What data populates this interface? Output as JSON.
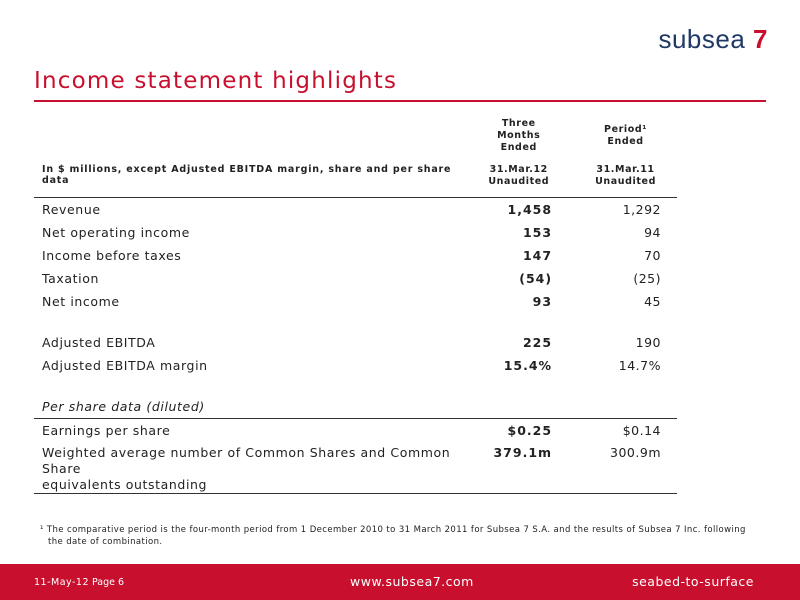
{
  "brand": {
    "logo_word": "subsea",
    "logo_num": "7"
  },
  "title": "Income statement highlights",
  "table": {
    "col_current": [
      "Three",
      "Months",
      "Ended"
    ],
    "col_prior": [
      "Period¹",
      "Ended"
    ],
    "caption": "In $ millions, except Adjusted EBITDA margin, share and per share data",
    "date_current": [
      "31.Mar.12",
      "Unaudited"
    ],
    "date_prior": [
      "31.Mar.11",
      "Unaudited"
    ],
    "rows": [
      {
        "label": "Revenue",
        "current": "1,458",
        "prior": "1,292"
      },
      {
        "label": "Net operating income",
        "current": "153",
        "prior": "94"
      },
      {
        "label": "Income before taxes",
        "current": "147",
        "prior": "70"
      },
      {
        "label": "Taxation",
        "current": "(54)",
        "prior": "(25)"
      },
      {
        "label": "Net income",
        "current": "93",
        "prior": "45"
      },
      {
        "label": "Adjusted EBITDA",
        "current": "225",
        "prior": "190"
      },
      {
        "label": "Adjusted EBITDA margin",
        "current": "15.4%",
        "prior": "14.7%"
      },
      {
        "label": "Per share data (diluted)",
        "current": "",
        "prior": ""
      },
      {
        "label": "Earnings per share",
        "current": "$0.25",
        "prior": "$0.14"
      },
      {
        "label": "Weighted average number of Common Shares and Common Share",
        "label2": "equivalents outstanding",
        "current": "379.1m",
        "prior": "300.9m"
      }
    ]
  },
  "footnote": {
    "line1": "¹ The comparative period is the four-month period from 1 December 2010 to 31 March 2011 for Subsea 7 S.A. and the results of Subsea 7 Inc. following",
    "line2": "the date of combination."
  },
  "footer": {
    "date": "11-May-12",
    "page": "Page 6",
    "url": "www.subsea7.com",
    "tagline": "seabed-to-surface"
  },
  "colors": {
    "accent": "#c8102e",
    "logo_text": "#1f3864"
  }
}
